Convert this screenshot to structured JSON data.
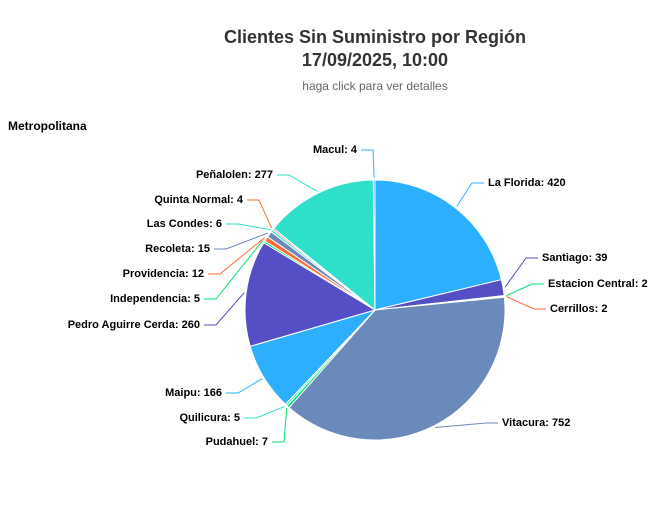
{
  "chart_data": {
    "type": "pie",
    "title": "Clientes Sin Suministro por Región",
    "title_line2": "17/09/2025, 10:00",
    "subtitle": "haga click para ver detalles",
    "series_name": "Metropolitana",
    "categories": [
      "La Florida",
      "Santiago",
      "Estacion Central",
      "Cerrillos",
      "Vitacura",
      "Pudahuel",
      "Quilicura",
      "Maipu",
      "Pedro Aguirre Cerda",
      "Independencia",
      "Providencia",
      "Recoleta",
      "Las Condes",
      "Quinta Normal",
      "Peñalolen",
      "Macul"
    ],
    "values": [
      420,
      39,
      2,
      2,
      752,
      7,
      5,
      166,
      260,
      5,
      12,
      15,
      6,
      4,
      277,
      4
    ],
    "colors": [
      "#2caffe",
      "#544fc5",
      "#00e272",
      "#fe6a35",
      "#6b8abc",
      "#00e272",
      "#2ee0ca",
      "#2caffe",
      "#544fc5",
      "#00e272",
      "#fe6a35",
      "#6b8abc",
      "#2ee0ca",
      "#fe6a35",
      "#2ee0ca",
      "#2caffe"
    ]
  }
}
